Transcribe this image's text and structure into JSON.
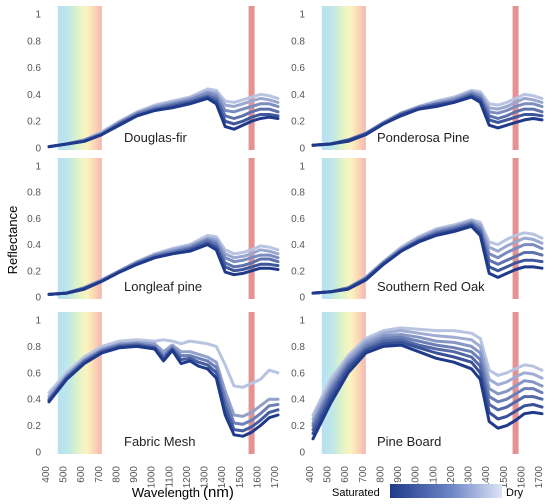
{
  "figure": {
    "ylabel": "Reflectance",
    "xlabel": "Wavelength",
    "xunit": "(nm)",
    "legend": {
      "left": "Saturated",
      "right": "Dry"
    },
    "colors": {
      "saturated": "#1f3a8a",
      "dry": "#d4dcf2",
      "marker_line": "#e07f80"
    }
  },
  "chart_data": [
    {
      "type": "line",
      "label": "Douglas-fir",
      "x": [
        400,
        500,
        600,
        700,
        800,
        900,
        1000,
        1100,
        1200,
        1300,
        1350,
        1400,
        1450,
        1500,
        1550,
        1600,
        1650,
        1700
      ],
      "series": [
        {
          "values": [
            0.01,
            0.03,
            0.06,
            0.12,
            0.2,
            0.27,
            0.32,
            0.35,
            0.38,
            0.44,
            0.43,
            0.35,
            0.34,
            0.36,
            0.38,
            0.4,
            0.39,
            0.37
          ]
        },
        {
          "values": [
            0.01,
            0.03,
            0.06,
            0.11,
            0.19,
            0.26,
            0.31,
            0.34,
            0.37,
            0.42,
            0.41,
            0.32,
            0.31,
            0.33,
            0.35,
            0.37,
            0.36,
            0.34
          ]
        },
        {
          "values": [
            0.01,
            0.03,
            0.06,
            0.11,
            0.19,
            0.26,
            0.3,
            0.33,
            0.36,
            0.41,
            0.39,
            0.28,
            0.27,
            0.29,
            0.31,
            0.33,
            0.33,
            0.31
          ]
        },
        {
          "values": [
            0.01,
            0.03,
            0.05,
            0.1,
            0.18,
            0.25,
            0.29,
            0.32,
            0.35,
            0.39,
            0.37,
            0.24,
            0.22,
            0.24,
            0.27,
            0.29,
            0.29,
            0.27
          ]
        },
        {
          "values": [
            0.01,
            0.03,
            0.05,
            0.1,
            0.18,
            0.24,
            0.28,
            0.31,
            0.34,
            0.38,
            0.35,
            0.2,
            0.18,
            0.2,
            0.23,
            0.25,
            0.25,
            0.24
          ]
        },
        {
          "values": [
            0.01,
            0.03,
            0.05,
            0.1,
            0.17,
            0.24,
            0.28,
            0.3,
            0.33,
            0.37,
            0.33,
            0.16,
            0.14,
            0.17,
            0.2,
            0.22,
            0.23,
            0.22
          ]
        }
      ],
      "xlim": [
        400,
        1700
      ],
      "ylim": [
        0,
        1
      ]
    },
    {
      "type": "line",
      "label": "Ponderosa Pine",
      "x": [
        400,
        500,
        600,
        700,
        800,
        900,
        1000,
        1100,
        1200,
        1300,
        1350,
        1400,
        1450,
        1500,
        1550,
        1600,
        1650,
        1700
      ],
      "series": [
        {
          "values": [
            0.02,
            0.03,
            0.06,
            0.11,
            0.19,
            0.26,
            0.31,
            0.35,
            0.38,
            0.43,
            0.42,
            0.33,
            0.32,
            0.34,
            0.37,
            0.4,
            0.39,
            0.37
          ]
        },
        {
          "values": [
            0.02,
            0.03,
            0.06,
            0.11,
            0.19,
            0.26,
            0.31,
            0.34,
            0.37,
            0.42,
            0.4,
            0.3,
            0.29,
            0.31,
            0.34,
            0.37,
            0.36,
            0.34
          ]
        },
        {
          "values": [
            0.02,
            0.03,
            0.06,
            0.11,
            0.19,
            0.26,
            0.3,
            0.33,
            0.36,
            0.41,
            0.39,
            0.27,
            0.26,
            0.28,
            0.31,
            0.33,
            0.33,
            0.31
          ]
        },
        {
          "values": [
            0.02,
            0.03,
            0.06,
            0.11,
            0.18,
            0.25,
            0.3,
            0.33,
            0.35,
            0.4,
            0.37,
            0.24,
            0.22,
            0.24,
            0.27,
            0.29,
            0.29,
            0.27
          ]
        },
        {
          "values": [
            0.02,
            0.03,
            0.06,
            0.1,
            0.18,
            0.25,
            0.29,
            0.32,
            0.34,
            0.39,
            0.36,
            0.21,
            0.19,
            0.21,
            0.23,
            0.25,
            0.25,
            0.24
          ]
        },
        {
          "values": [
            0.02,
            0.03,
            0.05,
            0.1,
            0.18,
            0.24,
            0.29,
            0.31,
            0.34,
            0.38,
            0.34,
            0.17,
            0.15,
            0.17,
            0.19,
            0.21,
            0.22,
            0.21
          ]
        }
      ],
      "xlim": [
        400,
        1700
      ],
      "ylim": [
        0,
        1
      ]
    },
    {
      "type": "line",
      "label": "Longleaf pine",
      "x": [
        400,
        500,
        600,
        700,
        800,
        900,
        1000,
        1100,
        1200,
        1300,
        1350,
        1400,
        1450,
        1500,
        1550,
        1600,
        1650,
        1700
      ],
      "series": [
        {
          "values": [
            0.02,
            0.03,
            0.07,
            0.13,
            0.2,
            0.27,
            0.33,
            0.37,
            0.4,
            0.47,
            0.46,
            0.36,
            0.33,
            0.34,
            0.36,
            0.39,
            0.38,
            0.36
          ]
        },
        {
          "values": [
            0.02,
            0.03,
            0.07,
            0.13,
            0.2,
            0.27,
            0.32,
            0.36,
            0.39,
            0.45,
            0.44,
            0.33,
            0.3,
            0.31,
            0.33,
            0.36,
            0.35,
            0.33
          ]
        },
        {
          "values": [
            0.02,
            0.03,
            0.07,
            0.13,
            0.2,
            0.26,
            0.32,
            0.35,
            0.38,
            0.44,
            0.42,
            0.3,
            0.27,
            0.28,
            0.3,
            0.32,
            0.32,
            0.3
          ]
        },
        {
          "values": [
            0.02,
            0.03,
            0.07,
            0.12,
            0.19,
            0.26,
            0.31,
            0.34,
            0.37,
            0.43,
            0.4,
            0.26,
            0.23,
            0.24,
            0.26,
            0.29,
            0.29,
            0.27
          ]
        },
        {
          "values": [
            0.02,
            0.03,
            0.06,
            0.12,
            0.19,
            0.25,
            0.3,
            0.33,
            0.36,
            0.41,
            0.38,
            0.23,
            0.2,
            0.21,
            0.23,
            0.25,
            0.25,
            0.24
          ]
        },
        {
          "values": [
            0.02,
            0.03,
            0.06,
            0.12,
            0.19,
            0.25,
            0.3,
            0.33,
            0.35,
            0.4,
            0.36,
            0.19,
            0.17,
            0.18,
            0.2,
            0.22,
            0.22,
            0.21
          ]
        }
      ],
      "xlim": [
        400,
        1700
      ],
      "ylim": [
        0,
        1
      ]
    },
    {
      "type": "line",
      "label": "Southern Red Oak",
      "x": [
        400,
        500,
        600,
        700,
        800,
        900,
        1000,
        1100,
        1200,
        1300,
        1350,
        1400,
        1450,
        1500,
        1550,
        1600,
        1650,
        1700
      ],
      "series": [
        {
          "values": [
            0.03,
            0.04,
            0.07,
            0.15,
            0.27,
            0.38,
            0.46,
            0.52,
            0.55,
            0.59,
            0.57,
            0.42,
            0.4,
            0.44,
            0.47,
            0.49,
            0.48,
            0.45
          ]
        },
        {
          "values": [
            0.03,
            0.04,
            0.07,
            0.15,
            0.27,
            0.37,
            0.45,
            0.51,
            0.54,
            0.58,
            0.55,
            0.38,
            0.35,
            0.39,
            0.42,
            0.45,
            0.44,
            0.41
          ]
        },
        {
          "values": [
            0.03,
            0.04,
            0.07,
            0.14,
            0.26,
            0.36,
            0.44,
            0.5,
            0.53,
            0.57,
            0.53,
            0.33,
            0.3,
            0.34,
            0.37,
            0.4,
            0.4,
            0.37
          ]
        },
        {
          "values": [
            0.03,
            0.04,
            0.07,
            0.14,
            0.26,
            0.36,
            0.43,
            0.49,
            0.52,
            0.56,
            0.51,
            0.28,
            0.25,
            0.28,
            0.31,
            0.34,
            0.34,
            0.32
          ]
        },
        {
          "values": [
            0.03,
            0.04,
            0.06,
            0.14,
            0.25,
            0.35,
            0.43,
            0.48,
            0.51,
            0.55,
            0.49,
            0.23,
            0.2,
            0.23,
            0.26,
            0.28,
            0.28,
            0.27
          ]
        },
        {
          "values": [
            0.03,
            0.04,
            0.06,
            0.13,
            0.25,
            0.35,
            0.42,
            0.47,
            0.5,
            0.54,
            0.47,
            0.18,
            0.15,
            0.18,
            0.21,
            0.23,
            0.23,
            0.22
          ]
        }
      ],
      "xlim": [
        400,
        1700
      ],
      "ylim": [
        0,
        1
      ]
    },
    {
      "type": "line",
      "label": "Fabric Mesh",
      "x": [
        400,
        500,
        600,
        700,
        800,
        900,
        1000,
        1050,
        1100,
        1150,
        1200,
        1250,
        1300,
        1350,
        1400,
        1450,
        1500,
        1550,
        1600,
        1650,
        1700
      ],
      "series": [
        {
          "values": [
            0.45,
            0.6,
            0.72,
            0.8,
            0.84,
            0.85,
            0.84,
            0.85,
            0.84,
            0.82,
            0.84,
            0.83,
            0.82,
            0.8,
            0.66,
            0.5,
            0.49,
            0.52,
            0.55,
            0.62,
            0.6
          ]
        },
        {
          "values": [
            0.42,
            0.58,
            0.7,
            0.78,
            0.82,
            0.83,
            0.82,
            0.76,
            0.81,
            0.76,
            0.76,
            0.74,
            0.72,
            0.68,
            0.46,
            0.28,
            0.27,
            0.3,
            0.35,
            0.4,
            0.4
          ]
        },
        {
          "values": [
            0.4,
            0.57,
            0.69,
            0.77,
            0.81,
            0.82,
            0.8,
            0.73,
            0.79,
            0.73,
            0.73,
            0.71,
            0.69,
            0.64,
            0.4,
            0.22,
            0.21,
            0.24,
            0.29,
            0.35,
            0.36
          ]
        },
        {
          "values": [
            0.39,
            0.56,
            0.68,
            0.76,
            0.8,
            0.81,
            0.79,
            0.71,
            0.78,
            0.7,
            0.71,
            0.68,
            0.66,
            0.6,
            0.34,
            0.17,
            0.16,
            0.19,
            0.24,
            0.3,
            0.32
          ]
        },
        {
          "values": [
            0.38,
            0.55,
            0.67,
            0.75,
            0.79,
            0.8,
            0.78,
            0.69,
            0.77,
            0.67,
            0.69,
            0.65,
            0.63,
            0.56,
            0.28,
            0.13,
            0.12,
            0.15,
            0.2,
            0.26,
            0.28
          ]
        }
      ],
      "xlim": [
        400,
        1700
      ],
      "ylim": [
        0,
        1
      ]
    },
    {
      "type": "line",
      "label": "Pine Board",
      "x": [
        400,
        500,
        600,
        700,
        800,
        900,
        1000,
        1100,
        1200,
        1300,
        1350,
        1400,
        1450,
        1500,
        1550,
        1600,
        1650,
        1700
      ],
      "series": [
        {
          "values": [
            0.28,
            0.55,
            0.73,
            0.86,
            0.92,
            0.94,
            0.93,
            0.92,
            0.92,
            0.9,
            0.86,
            0.62,
            0.58,
            0.6,
            0.63,
            0.66,
            0.65,
            0.62
          ]
        },
        {
          "values": [
            0.25,
            0.52,
            0.71,
            0.84,
            0.9,
            0.92,
            0.9,
            0.88,
            0.87,
            0.85,
            0.8,
            0.55,
            0.51,
            0.53,
            0.57,
            0.6,
            0.59,
            0.56
          ]
        },
        {
          "values": [
            0.22,
            0.49,
            0.69,
            0.82,
            0.88,
            0.89,
            0.87,
            0.84,
            0.83,
            0.8,
            0.75,
            0.48,
            0.44,
            0.46,
            0.5,
            0.54,
            0.53,
            0.5
          ]
        },
        {
          "values": [
            0.2,
            0.47,
            0.67,
            0.8,
            0.86,
            0.87,
            0.84,
            0.81,
            0.79,
            0.76,
            0.7,
            0.42,
            0.38,
            0.4,
            0.44,
            0.48,
            0.48,
            0.45
          ]
        },
        {
          "values": [
            0.17,
            0.44,
            0.65,
            0.78,
            0.84,
            0.85,
            0.81,
            0.78,
            0.76,
            0.72,
            0.65,
            0.36,
            0.32,
            0.34,
            0.38,
            0.42,
            0.42,
            0.4
          ]
        },
        {
          "values": [
            0.14,
            0.41,
            0.63,
            0.77,
            0.82,
            0.83,
            0.79,
            0.75,
            0.72,
            0.68,
            0.6,
            0.3,
            0.25,
            0.27,
            0.31,
            0.35,
            0.36,
            0.34
          ]
        },
        {
          "values": [
            0.1,
            0.37,
            0.6,
            0.75,
            0.8,
            0.81,
            0.76,
            0.71,
            0.68,
            0.63,
            0.55,
            0.23,
            0.18,
            0.2,
            0.24,
            0.29,
            0.3,
            0.29
          ]
        }
      ],
      "xlim": [
        400,
        1700
      ],
      "ylim": [
        0,
        1
      ]
    }
  ]
}
